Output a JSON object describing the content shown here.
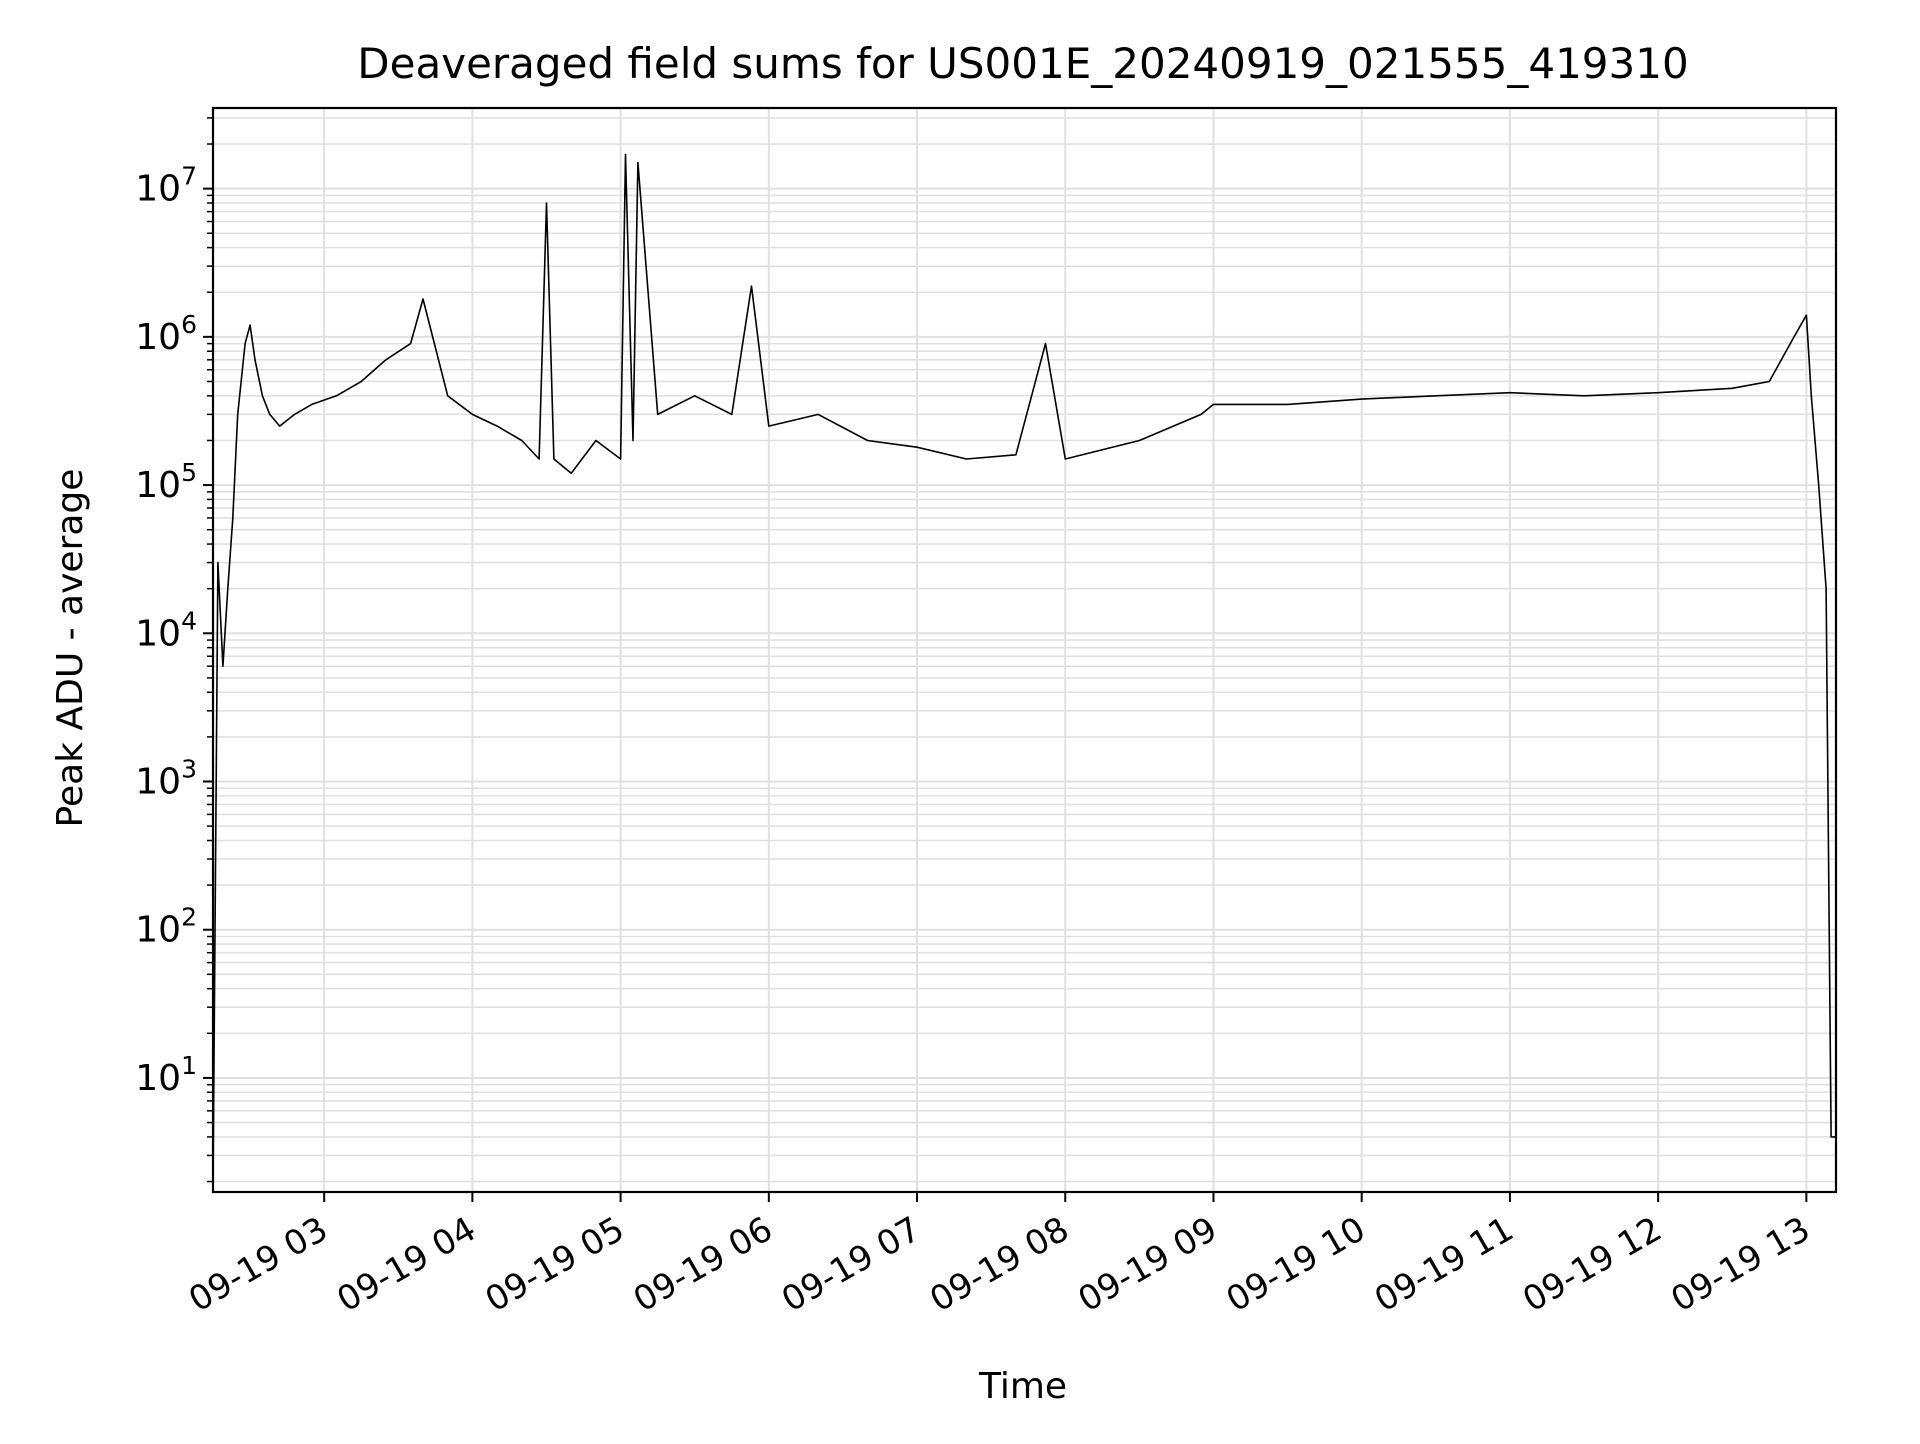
{
  "chart_data": {
    "type": "line",
    "title": "Deaveraged field sums for US001E_20240919_021555_419310",
    "xlabel": "Time",
    "ylabel": "Peak ADU - average",
    "x_tick_labels": [
      "09-19 03",
      "09-19 04",
      "09-19 05",
      "09-19 06",
      "09-19 07",
      "09-19 08",
      "09-19 09",
      "09-19 10",
      "09-19 11",
      "09-19 12",
      "09-19 13"
    ],
    "x_tick_values": [
      "2024-09-19 03:00",
      "2024-09-19 04:00",
      "2024-09-19 05:00",
      "2024-09-19 06:00",
      "2024-09-19 07:00",
      "2024-09-19 08:00",
      "2024-09-19 09:00",
      "2024-09-19 10:00",
      "2024-09-19 11:00",
      "2024-09-19 12:00",
      "2024-09-19 13:00"
    ],
    "xlim": [
      "2024-09-19 02:15",
      "2024-09-19 13:12"
    ],
    "y_scale": "log",
    "ylim": [
      1.7,
      35000000
    ],
    "y_ticks": [
      {
        "value": 10,
        "base": "10",
        "exp": "1"
      },
      {
        "value": 100,
        "base": "10",
        "exp": "2"
      },
      {
        "value": 1000,
        "base": "10",
        "exp": "3"
      },
      {
        "value": 10000,
        "base": "10",
        "exp": "4"
      },
      {
        "value": 100000,
        "base": "10",
        "exp": "5"
      },
      {
        "value": 1000000,
        "base": "10",
        "exp": "6"
      },
      {
        "value": 10000000,
        "base": "10",
        "exp": "7"
      }
    ],
    "grid": {
      "major": true,
      "minor": true
    },
    "line_color": "#000000",
    "grid_color": "#e0e0e0",
    "series": [
      {
        "name": "",
        "x": [
          "2024-09-19 02:15",
          "2024-09-19 02:17",
          "2024-09-19 02:19",
          "2024-09-19 02:21",
          "2024-09-19 02:23",
          "2024-09-19 02:25",
          "2024-09-19 02:28",
          "2024-09-19 02:30",
          "2024-09-19 02:32",
          "2024-09-19 02:35",
          "2024-09-19 02:38",
          "2024-09-19 02:42",
          "2024-09-19 02:48",
          "2024-09-19 02:55",
          "2024-09-19 03:05",
          "2024-09-19 03:15",
          "2024-09-19 03:25",
          "2024-09-19 03:35",
          "2024-09-19 03:40",
          "2024-09-19 03:50",
          "2024-09-19 04:00",
          "2024-09-19 04:10",
          "2024-09-19 04:20",
          "2024-09-19 04:27",
          "2024-09-19 04:30",
          "2024-09-19 04:33",
          "2024-09-19 04:40",
          "2024-09-19 04:50",
          "2024-09-19 05:00",
          "2024-09-19 05:02",
          "2024-09-19 05:05",
          "2024-09-19 05:07",
          "2024-09-19 05:15",
          "2024-09-19 05:30",
          "2024-09-19 05:45",
          "2024-09-19 05:53",
          "2024-09-19 06:00",
          "2024-09-19 06:20",
          "2024-09-19 06:40",
          "2024-09-19 07:00",
          "2024-09-19 07:20",
          "2024-09-19 07:40",
          "2024-09-19 07:52",
          "2024-09-19 08:00",
          "2024-09-19 08:30",
          "2024-09-19 08:55",
          "2024-09-19 09:00",
          "2024-09-19 09:30",
          "2024-09-19 10:00",
          "2024-09-19 10:30",
          "2024-09-19 11:00",
          "2024-09-19 11:30",
          "2024-09-19 12:00",
          "2024-09-19 12:30",
          "2024-09-19 12:45",
          "2024-09-19 12:55",
          "2024-09-19 13:00",
          "2024-09-19 13:02",
          "2024-09-19 13:05",
          "2024-09-19 13:08",
          "2024-09-19 13:10",
          "2024-09-19 13:12"
        ],
        "y": [
          1.8,
          30000,
          6000,
          20000,
          60000,
          300000,
          900000,
          1200000,
          700000,
          400000,
          300000,
          250000,
          300000,
          350000,
          400000,
          500000,
          700000,
          900000,
          1800000,
          400000,
          300000,
          250000,
          200000,
          150000,
          8000000,
          150000,
          120000,
          200000,
          150000,
          17000000,
          200000,
          15000000,
          300000,
          400000,
          300000,
          2200000,
          250000,
          300000,
          200000,
          180000,
          150000,
          160000,
          900000,
          150000,
          200000,
          300000,
          350000,
          350000,
          380000,
          400000,
          420000,
          400000,
          420000,
          450000,
          500000,
          1000000,
          1400000,
          400000,
          100000,
          20000,
          4,
          4
        ]
      }
    ]
  }
}
